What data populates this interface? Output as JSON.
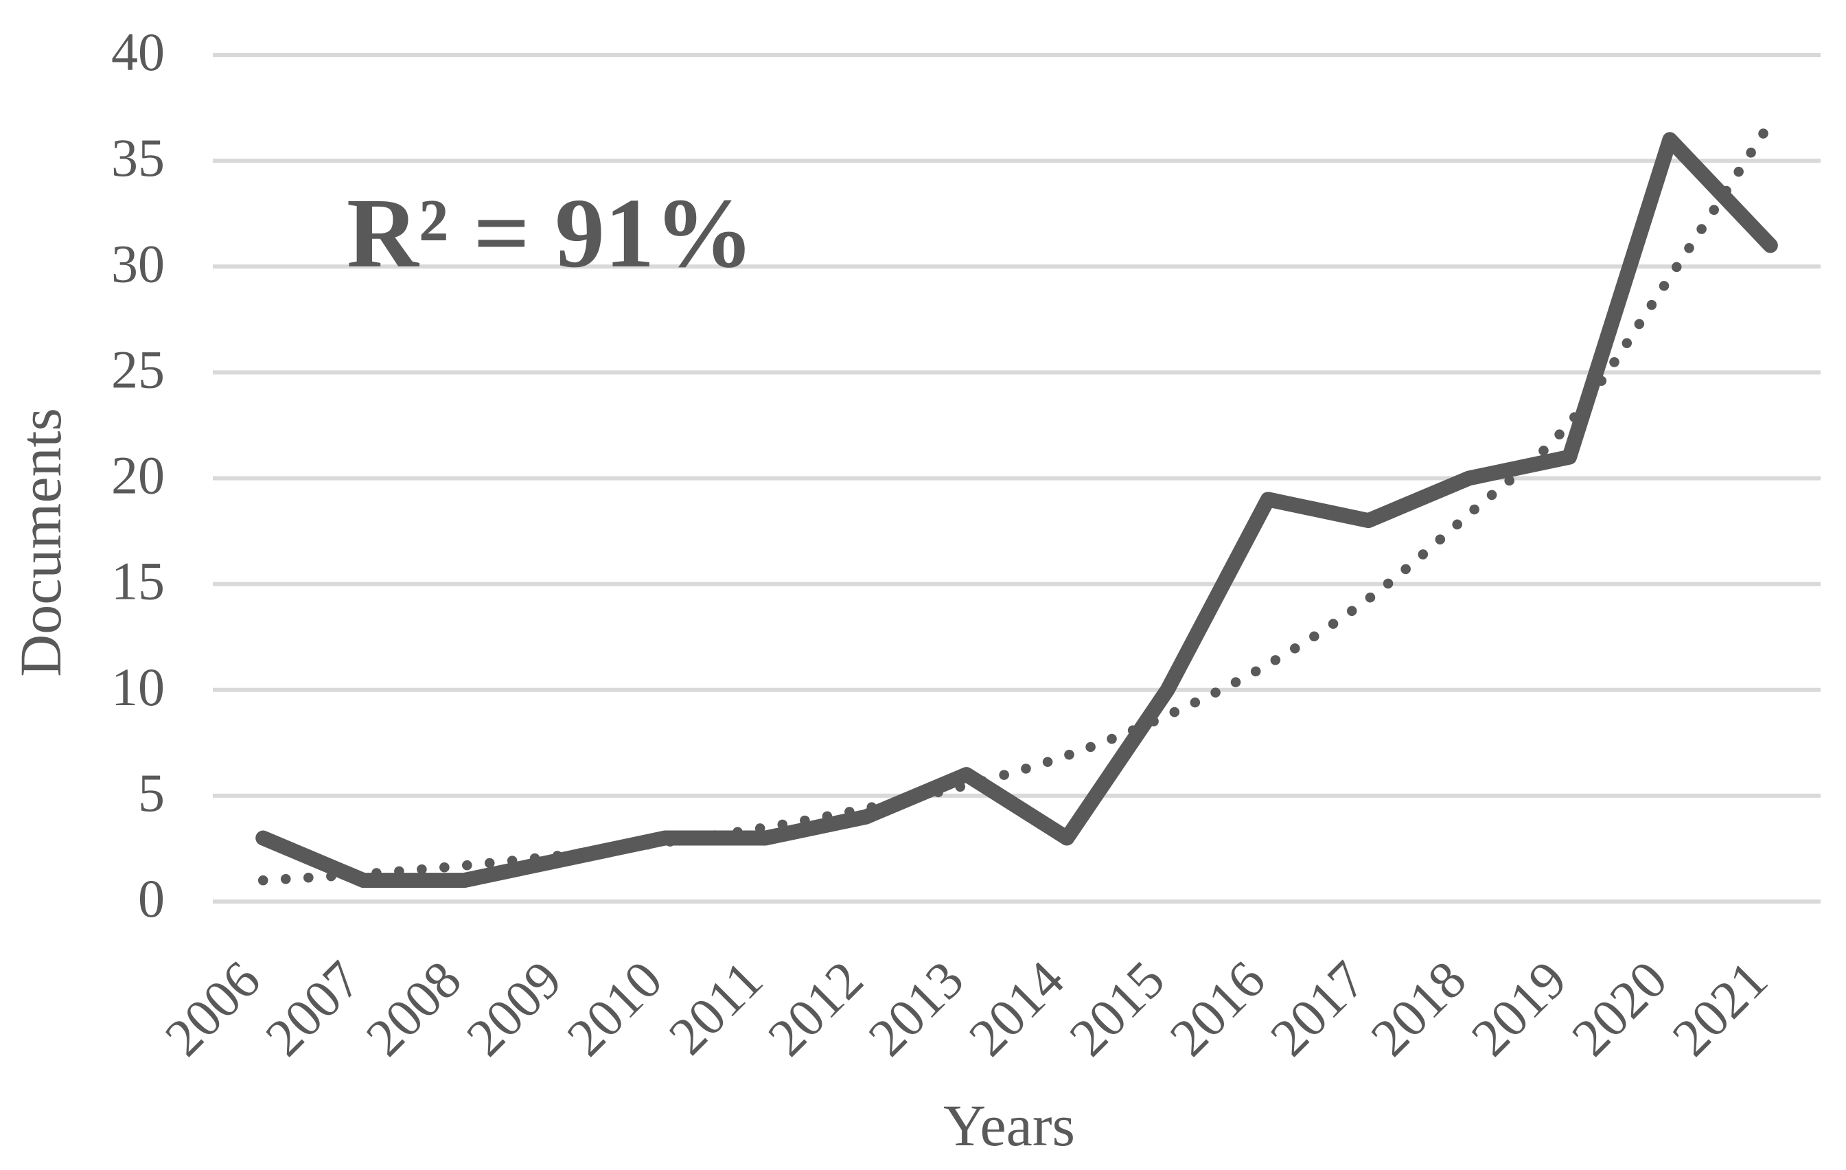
{
  "chart_data": {
    "type": "line",
    "title": "",
    "annotation": "R² = 91%",
    "xlabel": "Years",
    "ylabel": "Documents",
    "categories": [
      "2006",
      "2007",
      "2008",
      "2009",
      "2010",
      "2011",
      "2012",
      "2013",
      "2014",
      "2015",
      "2016",
      "2017",
      "2018",
      "2019",
      "2020",
      "2021"
    ],
    "series": [
      {
        "name": "Documents",
        "style": "solid",
        "values": [
          3,
          1,
          1,
          2,
          3,
          3,
          4,
          6,
          3,
          10,
          19,
          18,
          20,
          21,
          36,
          31
        ]
      },
      {
        "name": "Trendline",
        "style": "dotted",
        "approx": true,
        "values": [
          1.0,
          1.3,
          1.7,
          2.2,
          2.8,
          3.5,
          4.4,
          5.5,
          6.9,
          8.8,
          11.2,
          14.3,
          18.3,
          22.6,
          29.5,
          36.8
        ]
      }
    ],
    "ylim": [
      0,
      40
    ],
    "yticks": [
      0,
      5,
      10,
      15,
      20,
      25,
      30,
      35,
      40
    ],
    "grid": "horizontal",
    "legend": "none"
  },
  "colors": {
    "series": "#595959",
    "grid": "#d9d9d9",
    "text": "#595959",
    "background": "#ffffff"
  }
}
